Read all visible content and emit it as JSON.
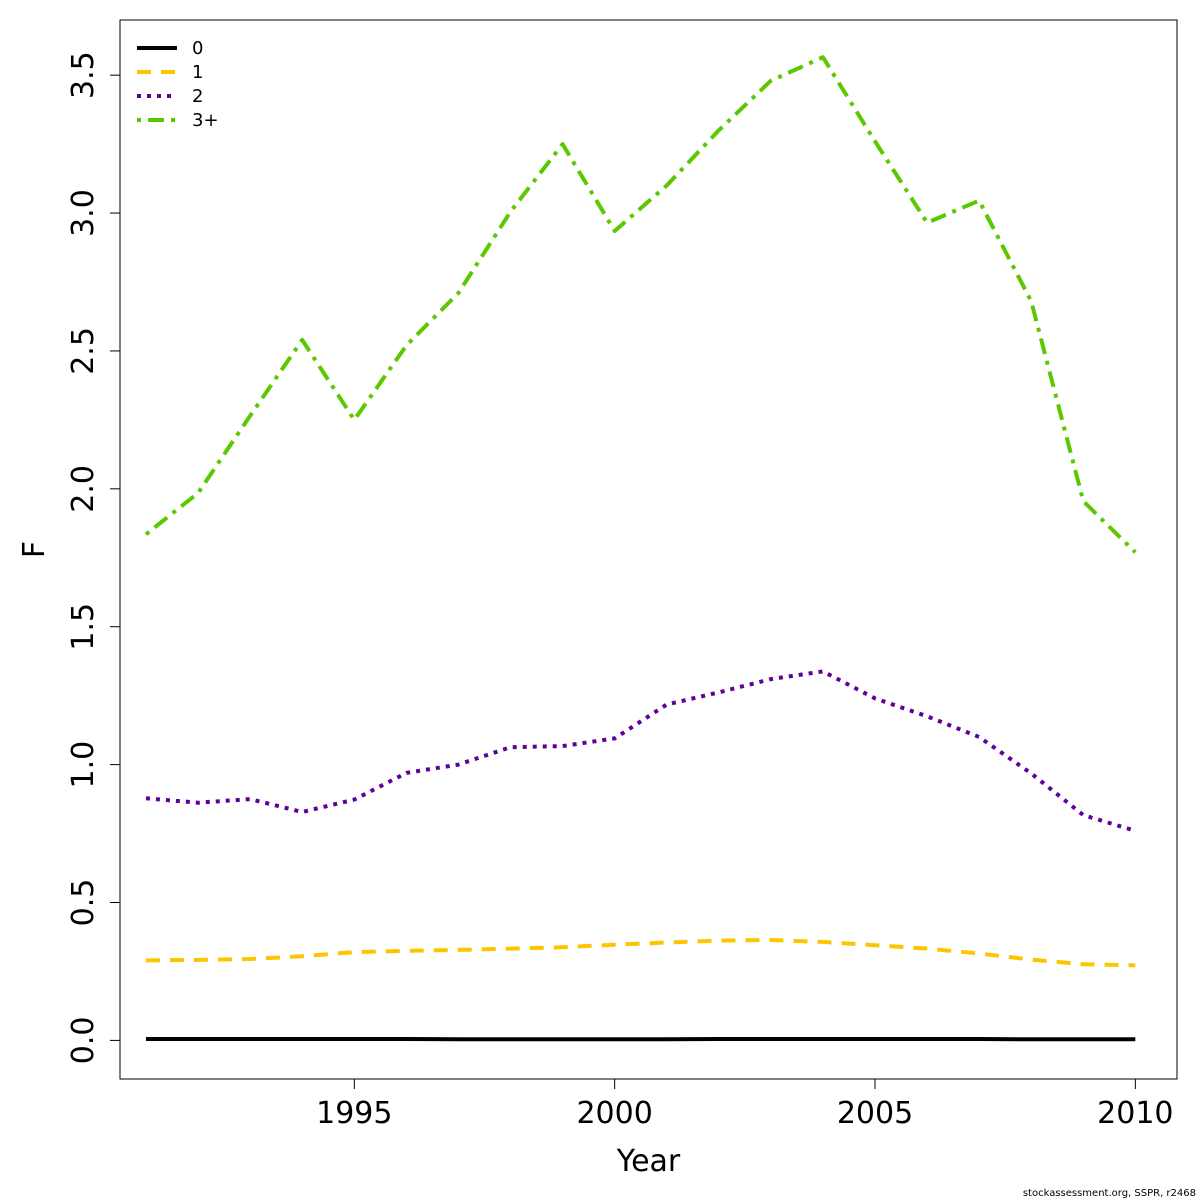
{
  "chart_data": {
    "type": "line",
    "title": "",
    "xlabel": "Year",
    "ylabel": "F",
    "xlim": [
      1990.5,
      2010.8
    ],
    "ylim": [
      -0.14,
      3.7
    ],
    "x_ticks": [
      1995,
      2000,
      2005,
      2010
    ],
    "y_ticks": [
      0.0,
      0.5,
      1.0,
      1.5,
      2.0,
      2.5,
      3.0,
      3.5
    ],
    "y_tick_labels": [
      "0.0",
      "0.5",
      "1.0",
      "1.5",
      "2.0",
      "2.5",
      "3.0",
      "3.5"
    ],
    "grid": false,
    "legend_position": "top-left",
    "x": [
      1991,
      1992,
      1993,
      1994,
      1995,
      1996,
      1997,
      1998,
      1999,
      2000,
      2001,
      2002,
      2003,
      2004,
      2005,
      2006,
      2007,
      2008,
      2009,
      2010
    ],
    "series": [
      {
        "name": "0",
        "color": "#000000",
        "dash": "solid",
        "values": [
          0.005,
          0.005,
          0.005,
          0.005,
          0.005,
          0.005,
          0.004,
          0.004,
          0.004,
          0.004,
          0.004,
          0.005,
          0.005,
          0.005,
          0.005,
          0.005,
          0.005,
          0.004,
          0.004,
          0.004
        ]
      },
      {
        "name": "1",
        "color": "#FFC400",
        "dash": "dashed",
        "values": [
          0.29,
          0.292,
          0.295,
          0.305,
          0.32,
          0.325,
          0.328,
          0.333,
          0.338,
          0.347,
          0.355,
          0.362,
          0.364,
          0.357,
          0.345,
          0.333,
          0.315,
          0.293,
          0.276,
          0.272
        ]
      },
      {
        "name": "2",
        "color": "#5E0099",
        "dash": "dotted",
        "values": [
          0.878,
          0.862,
          0.875,
          0.828,
          0.873,
          0.97,
          1.0,
          1.063,
          1.067,
          1.095,
          1.218,
          1.262,
          1.31,
          1.338,
          1.24,
          1.175,
          1.1,
          0.968,
          0.817,
          0.76
        ]
      },
      {
        "name": "3+",
        "color": "#5BC800",
        "dash": "dotdash",
        "values": [
          1.835,
          1.985,
          2.265,
          2.54,
          2.25,
          2.52,
          2.71,
          3.005,
          3.25,
          2.935,
          3.1,
          3.3,
          3.48,
          3.565,
          3.26,
          2.965,
          3.045,
          2.68,
          1.955,
          1.77
        ]
      }
    ]
  },
  "footer": {
    "credit": "stockassessment.org, SSPR, r2468"
  }
}
